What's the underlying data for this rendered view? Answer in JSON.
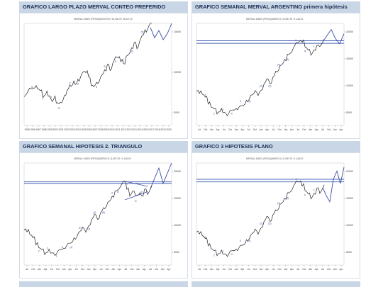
{
  "page": {
    "background": "#ffffff",
    "header_color": "#c9d6e6",
    "title_color": "#1b2f55"
  },
  "chart_data": [
    {
      "type": "line",
      "title": "GRAFICO LARGO PLAZO MERVAL CONTEO PREFERIDO",
      "header_line": "MERVAL INDEX (PESO)(MONTHLY) 15,300.00 +8,647.00",
      "x_tick_labels": [
        "1995",
        "1996",
        "1997",
        "1998",
        "1999",
        "2000",
        "2001",
        "2002",
        "2003",
        "2004",
        "2005",
        "2006",
        "2007",
        "2008",
        "2009",
        "2010",
        "2011",
        "2012",
        "2013",
        "2014",
        "2015",
        "2016",
        "2017",
        "2018",
        "2019",
        "2020"
      ],
      "y_tick_labels": [
        "15000",
        "10000",
        "5000"
      ],
      "wave_labels": [
        "III",
        "I",
        "II",
        "IV",
        "V",
        "3",
        "4",
        "5",
        "B",
        "A",
        "C",
        "(3)",
        "(5)"
      ],
      "series": [
        {
          "values": [
            0.3,
            0.32,
            0.36,
            0.34,
            0.38,
            0.36,
            0.33,
            0.29,
            0.31,
            0.28,
            0.24,
            0.27,
            0.22,
            0.2,
            0.24,
            0.3,
            0.34,
            0.38,
            0.41,
            0.4,
            0.44,
            0.49,
            0.53,
            0.51,
            0.46,
            0.4,
            0.38,
            0.41,
            0.45,
            0.5,
            0.54,
            0.58,
            0.55,
            0.61,
            0.66,
            0.68,
            0.63,
            0.6,
            0.66,
            0.71,
            0.76,
            0.8,
            0.77,
            0.83,
            0.88,
            0.92,
            0.96,
            1.0
          ]
        }
      ],
      "projection": {
        "values": [
          0.96,
          0.86,
          0.93,
          0.84,
          0.9,
          1.0
        ]
      },
      "hlines": [],
      "triangle": false
    },
    {
      "type": "line",
      "title": "GRAFICO SEMANAL MERVAL ARGENTINO primera hipótesis",
      "header_line": "MERVAL INDEX (PESO)(WEEKLY) 11,987.00 +1,148.00",
      "x_tick_labels": [
        "Jul",
        "Oct",
        "Jan",
        "Apr",
        "Jul",
        "Oct",
        "Jan",
        "Apr",
        "Jul",
        "Oct",
        "Jan",
        "Apr",
        "Jul",
        "Oct",
        "Jan",
        "Apr",
        "Jul",
        "Oct",
        "Jan",
        "Apr",
        "Jul",
        "Oct",
        "Jan",
        "Apr"
      ],
      "y_tick_labels": [
        "20000",
        "15000",
        "10000",
        "5000"
      ],
      "wave_labels": [
        "1",
        "2",
        "3",
        "4",
        "5",
        "(1)",
        "(2)",
        "(3)",
        "(4)",
        "(5)",
        "iv",
        "iii",
        "v"
      ],
      "series": [
        {
          "values": [
            0.35,
            0.32,
            0.3,
            0.26,
            0.22,
            0.18,
            0.15,
            0.13,
            0.14,
            0.12,
            0.1,
            0.13,
            0.15,
            0.14,
            0.17,
            0.2,
            0.19,
            0.23,
            0.27,
            0.3,
            0.33,
            0.31,
            0.35,
            0.4,
            0.44,
            0.42,
            0.47,
            0.52,
            0.56,
            0.6,
            0.64,
            0.68,
            0.72,
            0.76,
            0.8,
            0.84,
            0.82,
            0.76,
            0.72,
            0.7,
            0.74,
            0.77,
            0.79,
            0.82
          ]
        }
      ],
      "projection": {
        "values": [
          0.82,
          0.88,
          0.94,
          0.85,
          0.8,
          0.9
        ]
      },
      "hlines": [
        0.805,
        0.83
      ],
      "triangle": false
    },
    {
      "type": "line",
      "title": "GRAFICO SEMANAL HIPOTESIS 2. TRIANGULO",
      "header_line": "MERVAL INDEX (PESO)(WEEKLY) 11,987.00 +1,148.00",
      "x_tick_labels": [
        "Jul",
        "Oct",
        "Jan",
        "Apr",
        "Jul",
        "Oct",
        "Jan",
        "Apr",
        "Jul",
        "Oct",
        "Jan",
        "Apr",
        "Jul",
        "Oct",
        "Jan",
        "Apr",
        "Jul",
        "Oct",
        "Jan",
        "Apr",
        "Jul",
        "Oct",
        "Jan",
        "Apr"
      ],
      "y_tick_labels": [
        "20000",
        "15000",
        "10000",
        "5000"
      ],
      "wave_labels": [
        "1",
        "2",
        "3",
        "4",
        "5",
        "(1)",
        "(2)",
        "(3)",
        "(4)",
        "(5)",
        "A",
        "B",
        "C",
        "D",
        "E"
      ],
      "series": [
        {
          "values": [
            0.36,
            0.33,
            0.29,
            0.25,
            0.21,
            0.17,
            0.14,
            0.12,
            0.13,
            0.11,
            0.1,
            0.12,
            0.15,
            0.14,
            0.18,
            0.22,
            0.21,
            0.25,
            0.29,
            0.33,
            0.36,
            0.34,
            0.39,
            0.44,
            0.48,
            0.46,
            0.51,
            0.55,
            0.59,
            0.63,
            0.67,
            0.71,
            0.75,
            0.78,
            0.81,
            0.76,
            0.68,
            0.72,
            0.66,
            0.7,
            0.68,
            0.73,
            0.71,
            0.75
          ]
        }
      ],
      "projection": {
        "values": [
          0.75,
          0.85,
          0.95,
          0.8,
          0.9,
          1.0
        ]
      },
      "hlines": [
        0.8,
        0.815
      ],
      "triangle": true
    },
    {
      "type": "line",
      "title": "GRAFICO 3 HIPOTESIS PLANO",
      "header_line": "MERVAL INDEX (PESO)(WEEKLY) 11,987.00 +1,148.00",
      "x_tick_labels": [
        "Jul",
        "Oct",
        "Jan",
        "Apr",
        "Jul",
        "Oct",
        "Jan",
        "Apr",
        "Jul",
        "Oct",
        "Jan",
        "Apr",
        "Jul",
        "Oct",
        "Jan",
        "Apr",
        "Jul",
        "Oct",
        "Jan",
        "Apr",
        "Jul",
        "Oct",
        "Jan",
        "Apr"
      ],
      "y_tick_labels": [
        "20000",
        "15000",
        "10000",
        "5000"
      ],
      "wave_labels": [
        "1",
        "2",
        "3",
        "4",
        "5",
        "(1)",
        "(2)",
        "(3)",
        "(4)",
        "(5)",
        "a",
        "b",
        "c"
      ],
      "series": [
        {
          "values": [
            0.34,
            0.31,
            0.28,
            0.24,
            0.2,
            0.16,
            0.13,
            0.11,
            0.12,
            0.1,
            0.09,
            0.12,
            0.14,
            0.13,
            0.16,
            0.2,
            0.19,
            0.23,
            0.27,
            0.31,
            0.34,
            0.32,
            0.37,
            0.42,
            0.46,
            0.44,
            0.49,
            0.53,
            0.57,
            0.61,
            0.65,
            0.69,
            0.73,
            0.77,
            0.81,
            0.83,
            0.78,
            0.72,
            0.68,
            0.66,
            0.7,
            0.74,
            0.72,
            0.76
          ]
        }
      ],
      "projection": {
        "values": [
          0.76,
          0.68,
          0.62,
          0.84,
          0.92,
          0.8,
          0.96
        ]
      },
      "hlines": [
        0.815,
        0.84
      ],
      "triangle": false
    }
  ]
}
